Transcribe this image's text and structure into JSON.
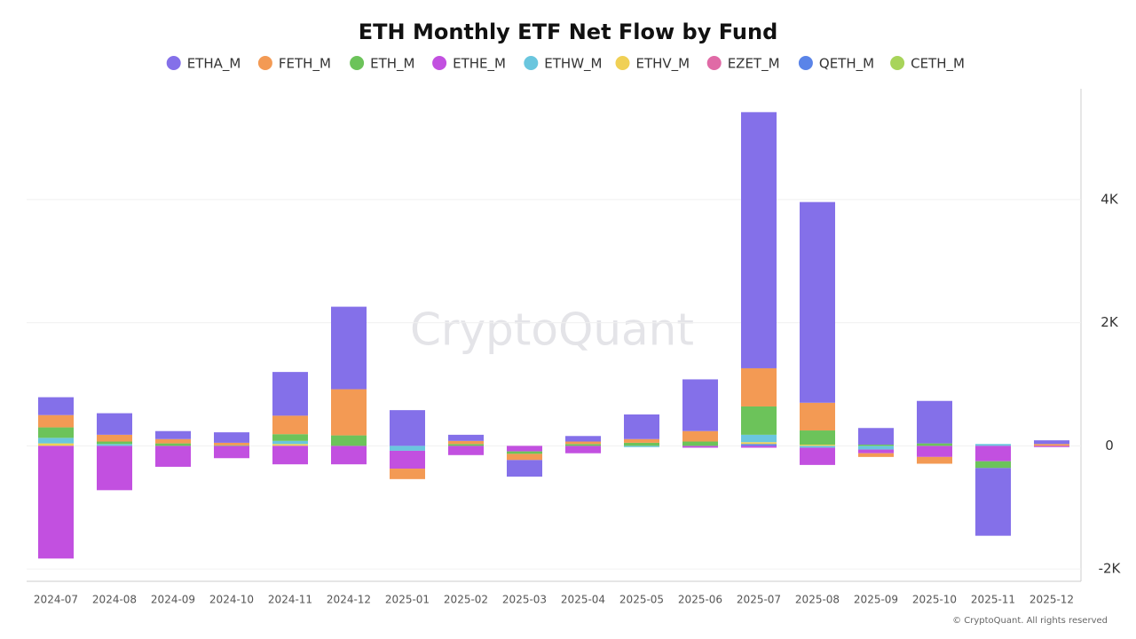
{
  "chart_data": {
    "type": "stacked-bar",
    "title": "ETH Monthly ETF Net Flow by Fund",
    "watermark": "CryptoQuant",
    "footer": "© CryptoQuant. All rights reserved",
    "categories": [
      "2024-07",
      "2024-08",
      "2024-09",
      "2024-10",
      "2024-11",
      "2024-12",
      "2025-01",
      "2025-02",
      "2025-03",
      "2025-04",
      "2025-05",
      "2025-06",
      "2025-07",
      "2025-08",
      "2025-09",
      "2025-10",
      "2025-11",
      "2025-12"
    ],
    "series": [
      {
        "name": "ETHA_M",
        "color": "#8470e9",
        "values": [
          290,
          350,
          130,
          170,
          710,
          1340,
          580,
          100,
          -270,
          90,
          400,
          840,
          4160,
          3260,
          270,
          690,
          -1100,
          60
        ]
      },
      {
        "name": "FETH_M",
        "color": "#f39a54",
        "values": [
          200,
          110,
          70,
          40,
          300,
          750,
          -170,
          50,
          -100,
          40,
          60,
          170,
          620,
          450,
          -60,
          -110,
          0,
          30
        ]
      },
      {
        "name": "ETH_M",
        "color": "#6cc35a",
        "values": [
          170,
          40,
          40,
          10,
          110,
          170,
          0,
          30,
          -40,
          30,
          50,
          70,
          460,
          230,
          20,
          40,
          -110,
          0
        ]
      },
      {
        "name": "ETHE_M",
        "color": "#c250e0",
        "values": [
          -1830,
          -720,
          -340,
          -200,
          -300,
          -300,
          -290,
          -150,
          -90,
          -120,
          0,
          -30,
          -30,
          -280,
          -60,
          -180,
          -250,
          -20
        ]
      },
      {
        "name": "ETHW_M",
        "color": "#6ac6de",
        "values": [
          90,
          30,
          0,
          0,
          50,
          0,
          -80,
          0,
          0,
          0,
          -20,
          0,
          120,
          -30,
          -60,
          0,
          30,
          0
        ]
      },
      {
        "name": "ETHV_M",
        "color": "#f0d055",
        "values": [
          40,
          0,
          0,
          0,
          30,
          0,
          0,
          0,
          0,
          0,
          0,
          0,
          30,
          20,
          0,
          0,
          0,
          0
        ]
      },
      {
        "name": "EZET_M",
        "color": "#e06aa6",
        "values": [
          0,
          0,
          0,
          0,
          0,
          0,
          0,
          0,
          0,
          0,
          0,
          0,
          0,
          0,
          0,
          0,
          0,
          0
        ]
      },
      {
        "name": "QETH_M",
        "color": "#5a84e8",
        "values": [
          0,
          0,
          0,
          0,
          0,
          0,
          0,
          0,
          0,
          0,
          0,
          0,
          30,
          0,
          0,
          0,
          0,
          0
        ]
      },
      {
        "name": "CETH_M",
        "color": "#a8d45a",
        "values": [
          0,
          0,
          0,
          0,
          0,
          0,
          0,
          0,
          0,
          0,
          0,
          0,
          0,
          0,
          0,
          0,
          0,
          0
        ]
      }
    ],
    "ylim": [
      -2200,
      5800
    ],
    "yticks": [
      {
        "value": -2000,
        "label": "-2K"
      },
      0,
      {
        "value": 2000,
        "label": "2K"
      },
      {
        "value": 4000,
        "label": "4K"
      }
    ],
    "grid": true
  }
}
